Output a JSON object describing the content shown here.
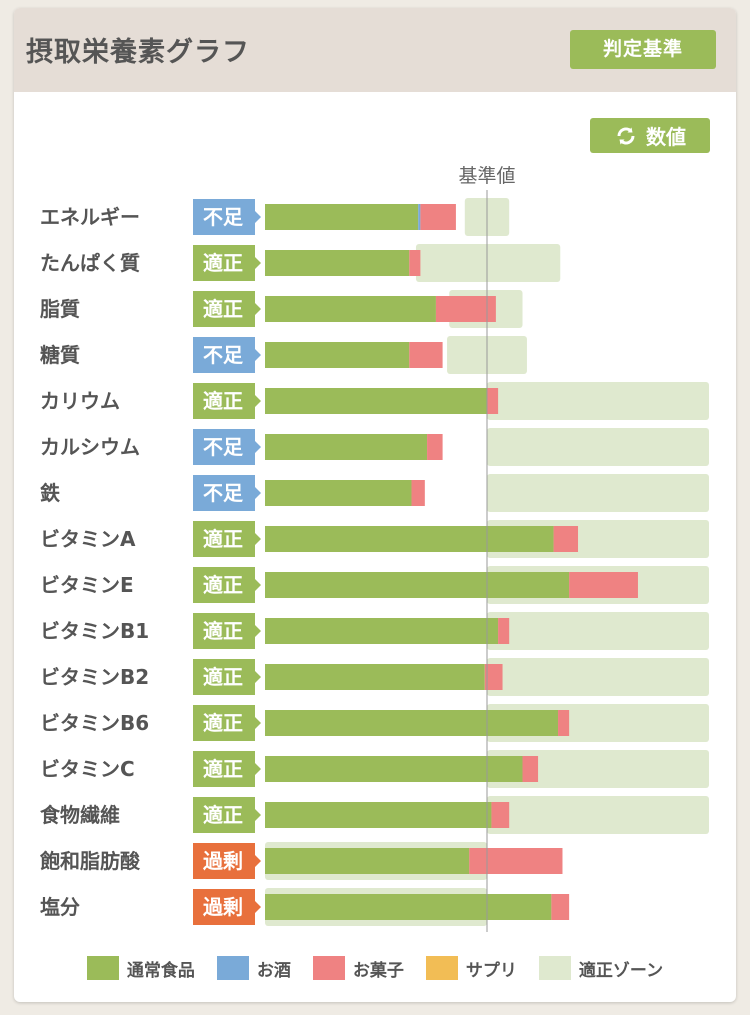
{
  "header": {
    "title": "摂取栄養素グラフ",
    "criteria_button": "判定基準"
  },
  "toolbar": {
    "value_button": "数値"
  },
  "icons": {
    "refresh": "refresh-icon"
  },
  "colors": {
    "normal_food": "#9bbb59",
    "alcohol": "#7aaad8",
    "sweets": "#ef8282",
    "supplement": "#f2bd55",
    "optimal_zone": "#dfe9cf",
    "status_insufficient": "#7aaad8",
    "status_adequate": "#9bbb59",
    "status_excess": "#e8703c"
  },
  "chart_data": {
    "type": "bar",
    "orientation": "horizontal",
    "stacked": true,
    "reference_label": "基準値",
    "reference_value": 100,
    "xlim": [
      0,
      200
    ],
    "categories": [
      "エネルギー",
      "たんぱく質",
      "脂質",
      "糖質",
      "カリウム",
      "カルシウム",
      "鉄",
      "ビタミンA",
      "ビタミンE",
      "ビタミンB1",
      "ビタミンB2",
      "ビタミンB6",
      "ビタミンC",
      "食物繊維",
      "飽和脂肪酸",
      "塩分"
    ],
    "status": [
      "不足",
      "適正",
      "適正",
      "不足",
      "適正",
      "不足",
      "不足",
      "適正",
      "適正",
      "適正",
      "適正",
      "適正",
      "適正",
      "適正",
      "過剰",
      "過剰"
    ],
    "series": [
      {
        "name": "通常食品",
        "values": [
          69,
          65,
          77,
          65,
          100,
          73,
          66,
          130,
          137,
          105,
          99,
          132,
          116,
          102,
          92,
          129
        ]
      },
      {
        "name": "お酒",
        "values": [
          1,
          0,
          0,
          0,
          0,
          0,
          0,
          0,
          0,
          0,
          0,
          0,
          0,
          0,
          0,
          0
        ]
      },
      {
        "name": "お菓子",
        "values": [
          16,
          5,
          27,
          15,
          5,
          7,
          6,
          11,
          31,
          5,
          8,
          5,
          7,
          8,
          42,
          8
        ]
      },
      {
        "name": "サプリ",
        "values": [
          0,
          0,
          0,
          0,
          0,
          0,
          0,
          0,
          0,
          0,
          0,
          0,
          0,
          0,
          0,
          0
        ]
      }
    ],
    "optimal_zone": [
      [
        90,
        110
      ],
      [
        68,
        133
      ],
      [
        83,
        116
      ],
      [
        82,
        118
      ],
      [
        100,
        200
      ],
      [
        100,
        200
      ],
      [
        100,
        200
      ],
      [
        100,
        200
      ],
      [
        100,
        200
      ],
      [
        100,
        200
      ],
      [
        100,
        200
      ],
      [
        100,
        200
      ],
      [
        100,
        200
      ],
      [
        100,
        200
      ],
      [
        0,
        100
      ],
      [
        0,
        100
      ]
    ],
    "legend": [
      "通常食品",
      "お酒",
      "お菓子",
      "サプリ",
      "適正ゾーン"
    ],
    "legend_position": "bottom",
    "grid": false
  }
}
